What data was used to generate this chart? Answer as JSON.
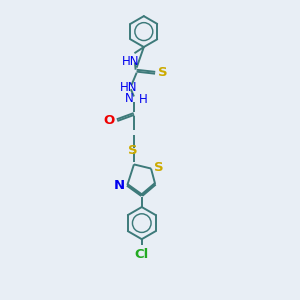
{
  "bg_color": "#e8eef5",
  "bond_color": "#3d7a7a",
  "bond_width": 1.4,
  "heteroatom_colors": {
    "N": "#0000ee",
    "O": "#ee0000",
    "S": "#ccaa00",
    "Cl": "#22aa22"
  },
  "font_size": 8.5,
  "figsize": [
    3.0,
    3.0
  ],
  "dpi": 100,
  "xlim": [
    3.5,
    9.5
  ],
  "ylim": [
    0.0,
    14.5
  ]
}
